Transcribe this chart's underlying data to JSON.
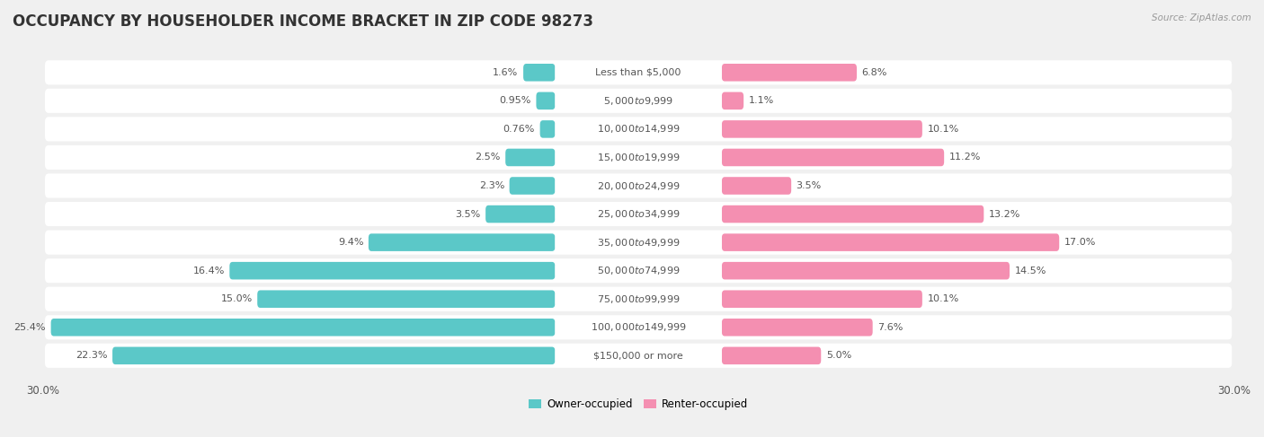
{
  "title": "OCCUPANCY BY HOUSEHOLDER INCOME BRACKET IN ZIP CODE 98273",
  "source": "Source: ZipAtlas.com",
  "categories": [
    "Less than $5,000",
    "$5,000 to $9,999",
    "$10,000 to $14,999",
    "$15,000 to $19,999",
    "$20,000 to $24,999",
    "$25,000 to $34,999",
    "$35,000 to $49,999",
    "$50,000 to $74,999",
    "$75,000 to $99,999",
    "$100,000 to $149,999",
    "$150,000 or more"
  ],
  "owner_values": [
    1.6,
    0.95,
    0.76,
    2.5,
    2.3,
    3.5,
    9.4,
    16.4,
    15.0,
    25.4,
    22.3
  ],
  "renter_values": [
    6.8,
    1.1,
    10.1,
    11.2,
    3.5,
    13.2,
    17.0,
    14.5,
    10.1,
    7.6,
    5.0
  ],
  "owner_color": "#5BC8C8",
  "renter_color": "#F48FB1",
  "background_color": "#f0f0f0",
  "bar_background": "#ffffff",
  "row_bg_color": "#e8e8e8",
  "xlim": 30.0,
  "legend_owner": "Owner-occupied",
  "legend_renter": "Renter-occupied",
  "title_fontsize": 12,
  "label_fontsize": 8,
  "value_fontsize": 8,
  "axis_fontsize": 8.5,
  "source_fontsize": 7.5
}
